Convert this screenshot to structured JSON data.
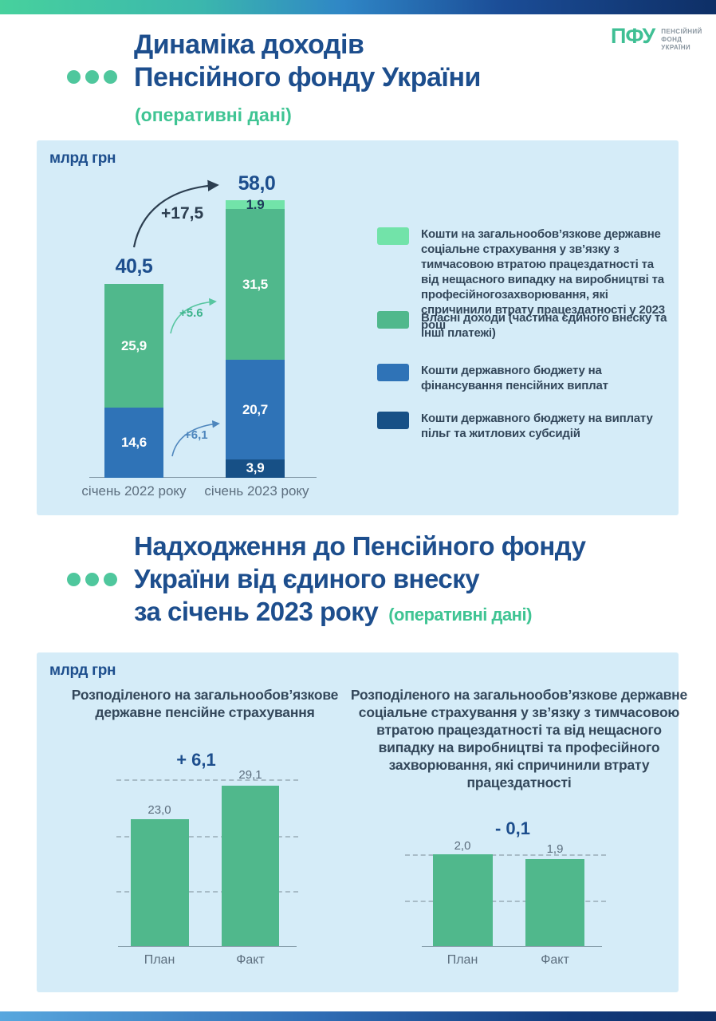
{
  "colors": {
    "title_navy": "#1d4e8d",
    "accent_green": "#3fc493",
    "panel_bg": "#d5ecf8",
    "mint": "#72e3a9",
    "green": "#50b88c",
    "blue": "#2f73b7",
    "dark_blue": "#175086"
  },
  "logo": {
    "mark": "ПФУ",
    "caption_line1": "ПЕНСІЙНИЙ",
    "caption_line2": "ФОНД",
    "caption_line3": "УКРАЇНИ"
  },
  "header1": {
    "title_line1": "Динаміка доходів",
    "title_line2": "Пенсійного фонду України",
    "subtitle": "(оперативні дані)"
  },
  "header2": {
    "title_line1": "Надходження до Пенсійного фонду",
    "title_line2": "України від єдиного внеску",
    "title_line3": "за січень 2023 року",
    "subtitle": "(оперативні дані)"
  },
  "chart_data": [
    {
      "type": "bar",
      "stacked": true,
      "unit": "млрд грн",
      "categories": [
        "січень 2022 року",
        "січень 2023 року"
      ],
      "totals": [
        40.5,
        58.0
      ],
      "totals_labels": [
        "40,5",
        "58,0"
      ],
      "annotations": {
        "total_delta": "+17,5",
        "own_income_delta": "+5.6",
        "state_budget_delta": "+6,1"
      },
      "series": [
        {
          "name": "Кошти на загальнообов’язкове державне соціальне страхування у зв’язку з тимчасовою втратою працездатності та від нещасного випадку на виробництві та професійногозахворювання, які спричинили втрату працездатності у 2023 році",
          "color": "#72e3a9",
          "dark_label": true,
          "values": [
            null,
            1.9
          ],
          "value_labels": [
            null,
            "1,9"
          ]
        },
        {
          "name": "Власні доходи (частина єдиного внеску та інші платежі)",
          "color": "#50b88c",
          "values": [
            25.9,
            31.5
          ],
          "value_labels": [
            "25,9",
            "31,5"
          ]
        },
        {
          "name": "Кошти державного бюджету на фінансування пенсійних виплат",
          "color": "#2f73b7",
          "values": [
            14.6,
            20.7
          ],
          "value_labels": [
            "14,6",
            "20,7"
          ]
        },
        {
          "name": "Кошти державного бюджету на виплату пільг та житлових субсидій",
          "color": "#175086",
          "values": [
            null,
            3.9
          ],
          "value_labels": [
            null,
            "3,9"
          ]
        }
      ]
    },
    {
      "type": "bar",
      "unit": "млрд грн",
      "title": "Розподіленого на загальнообов’язкове державне пенсійне страхування",
      "categories": [
        "План",
        "Факт"
      ],
      "values": [
        23.0,
        29.1
      ],
      "value_labels": [
        "23,0",
        "29,1"
      ],
      "delta_label": "+ 6,1",
      "gridline_values": [
        10,
        20,
        30
      ],
      "bar_color": "#50b88c"
    },
    {
      "type": "bar",
      "unit": "млрд грн",
      "title": "Розподіленого на загальнообов’язкове державне соціальне страхування у зв’язку з тимчасовою втратою працездатності та від нещасного випадку на виробництві та професійного захворювання, які спричинили втрату працездатності",
      "categories": [
        "План",
        "Факт"
      ],
      "values": [
        2.0,
        1.9
      ],
      "value_labels": [
        "2,0",
        "1,9"
      ],
      "delta_label": "- 0,1",
      "gridline_values": [
        1,
        2
      ],
      "bar_color": "#50b88c"
    }
  ]
}
